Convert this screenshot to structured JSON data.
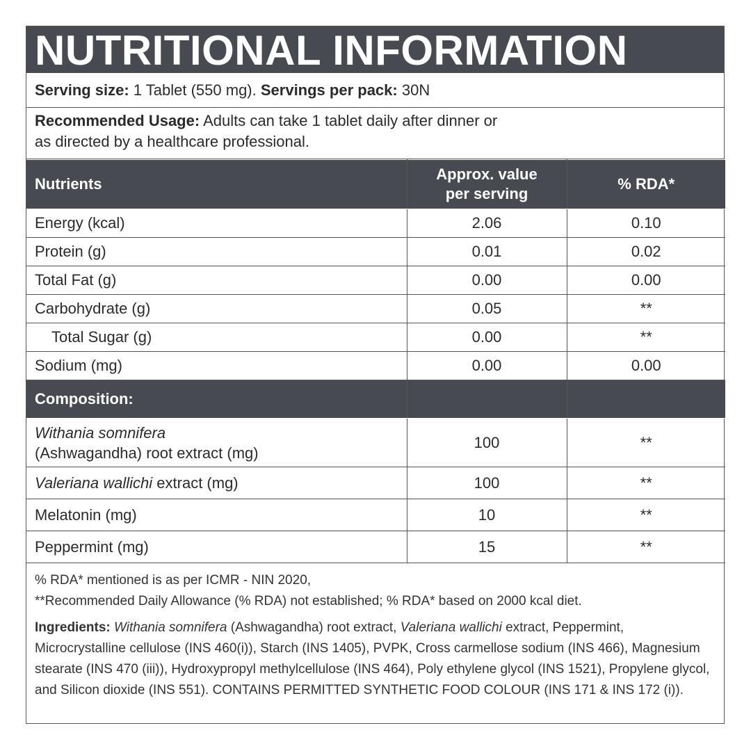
{
  "title": "NUTRITIONAL INFORMATION",
  "serving": {
    "size_label": "Serving size:",
    "size_value": " 1 Tablet (550 mg). ",
    "per_pack_label": "Servings per pack:",
    "per_pack_value": " 30N"
  },
  "usage": {
    "label": "Recommended Usage:",
    "line1": " Adults can take 1 tablet daily after dinner or",
    "line2": "as directed by a healthcare professional."
  },
  "table": {
    "headers": {
      "nutrients": "Nutrients",
      "value_line1": "Approx. value",
      "value_line2": "per serving",
      "rda": "% RDA*"
    },
    "rows": [
      {
        "name": "Energy (kcal)",
        "value": "2.06",
        "rda": "0.10"
      },
      {
        "name": "Protein (g)",
        "value": "0.01",
        "rda": "0.02"
      },
      {
        "name": "Total Fat (g)",
        "value": "0.00",
        "rda": "0.00"
      },
      {
        "name": "Carbohydrate (g)",
        "value": "0.05",
        "rda": "**"
      },
      {
        "name": "Total Sugar (g)",
        "value": "0.00",
        "rda": "**"
      },
      {
        "name": "Sodium (mg)",
        "value": "0.00",
        "rda": "0.00"
      }
    ],
    "composition_header": "Composition:",
    "composition": [
      {
        "name_italic": "Withania somnifera",
        "name_rest": "(Ashwagandha) root extract (mg)",
        "value": "100",
        "rda": "**"
      },
      {
        "name_italic": "Valeriana wallichi",
        "name_rest": " extract (mg)",
        "value": "100",
        "rda": "**"
      },
      {
        "name": "Melatonin (mg)",
        "value": "10",
        "rda": "**"
      },
      {
        "name": "Peppermint (mg)",
        "value": "15",
        "rda": "**"
      }
    ]
  },
  "footnotes": {
    "line1": "% RDA* mentioned is as per ICMR - NIN 2020,",
    "line2": "**Recommended Daily Allowance (% RDA) not established; % RDA* based on 2000 kcal diet."
  },
  "ingredients": {
    "label": "Ingredients:",
    "italic1": " Withania somnifera",
    "text1": " (Ashwagandha) root extract, ",
    "italic2": "Valeriana wallichi",
    "text2": " extract, Peppermint, Microcrystalline cellulose (INS 460(i)), Starch (INS 1405), PVPK, Cross carmellose sodium (INS 466), Magnesium stearate (INS 470 (iii)), Hydroxypropyl methylcellulose (INS 464), Poly ethylene glycol (INS 1521), Propylene glycol, and Silicon dioxide (INS 551). CONTAINS PERMITTED SYNTHETIC FOOD COLOUR (INS 171 & INS 172 (i))."
  }
}
